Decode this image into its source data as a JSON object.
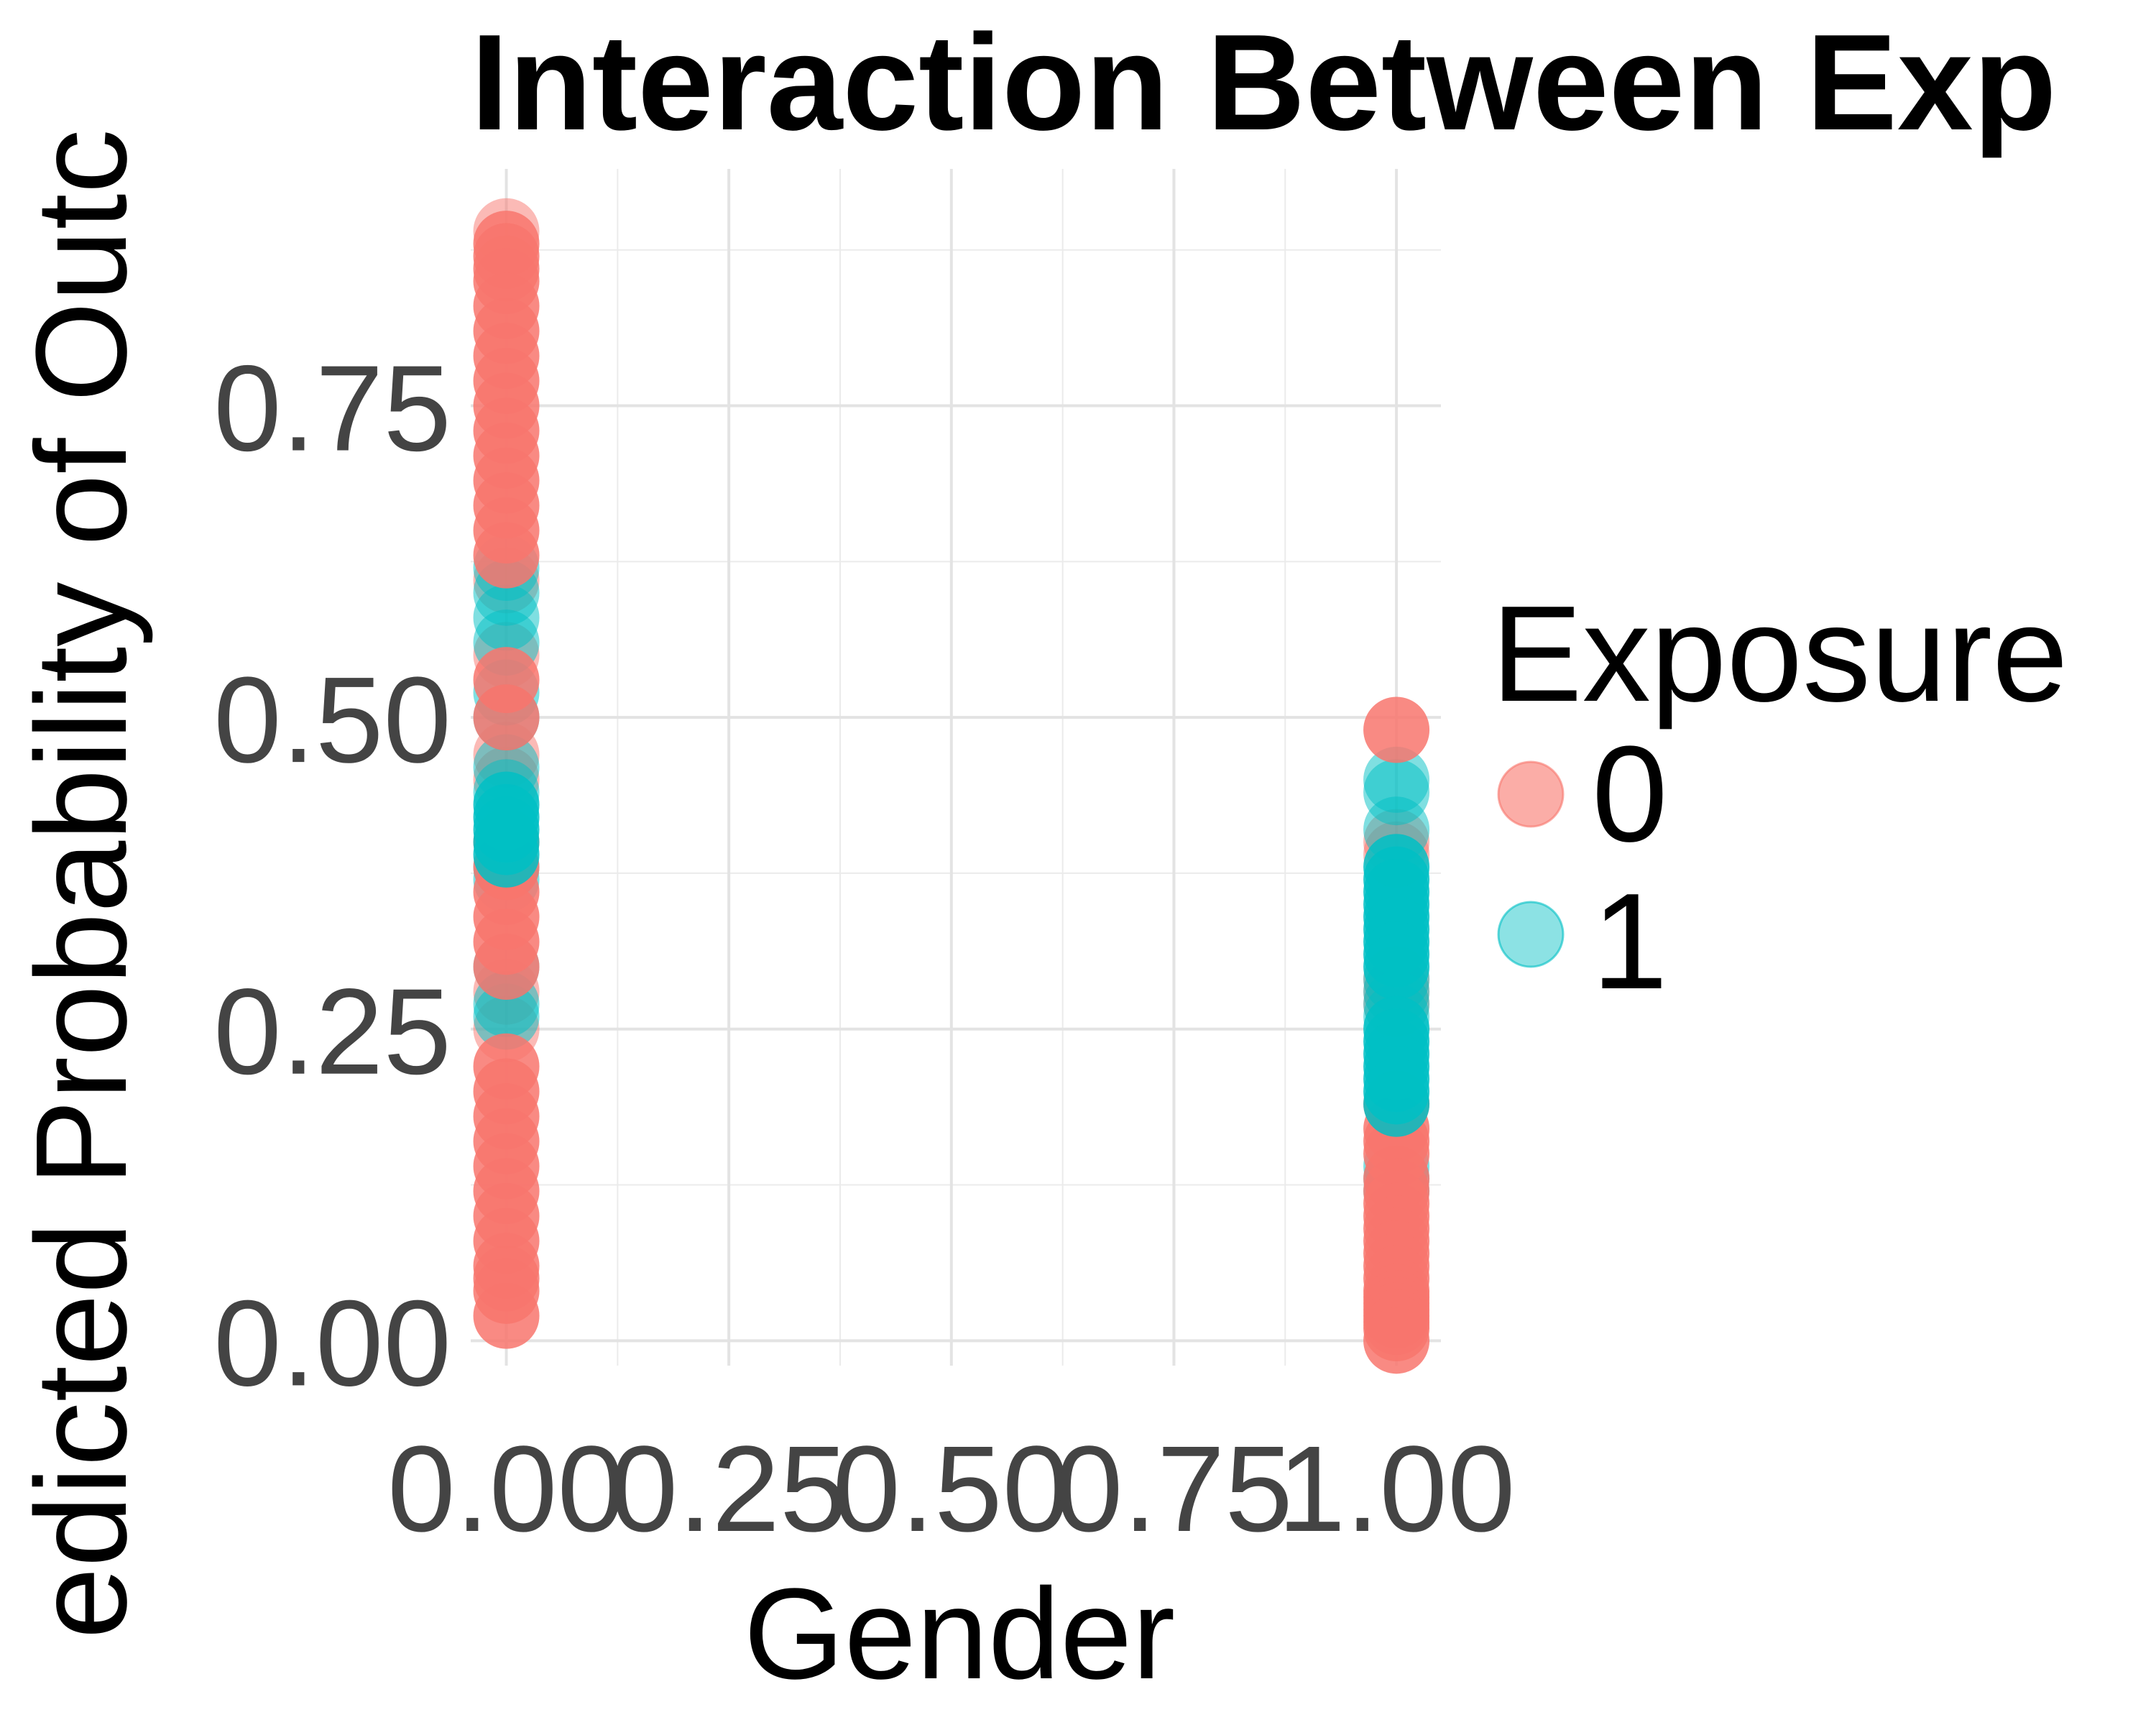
{
  "chart_data": {
    "type": "scatter",
    "title": "Interaction Between Exp",
    "xlabel": "Gender",
    "ylabel": "edicted Probability of Outc",
    "xlim": [
      -0.04,
      1.05
    ],
    "ylim": [
      -0.02,
      0.94
    ],
    "x_ticks": [
      "0.00",
      "0.25",
      "0.50",
      "0.75",
      "1.00"
    ],
    "x_tick_values": [
      0,
      0.25,
      0.5,
      0.75,
      1
    ],
    "y_ticks": [
      "0.00",
      "0.25",
      "0.50",
      "0.75"
    ],
    "y_tick_values": [
      0,
      0.25,
      0.5,
      0.75
    ],
    "grid": true,
    "legend": {
      "title": "Exposure",
      "position": "right",
      "entries": [
        "0",
        "1"
      ]
    },
    "colors": {
      "exposure_0": "#F8766D",
      "exposure_1": "#00BFC4"
    },
    "series": [
      {
        "name": "0",
        "x": [
          0,
          0,
          0,
          0,
          0,
          0,
          0,
          0,
          0,
          0,
          0,
          0,
          0,
          0,
          0,
          0,
          0,
          0,
          0,
          0,
          0,
          0,
          0,
          0,
          0,
          0,
          0,
          0,
          0,
          0,
          0,
          0,
          0,
          0,
          0,
          0,
          0,
          0,
          0,
          0,
          0,
          0,
          1,
          1,
          1,
          1,
          1,
          1,
          1,
          1,
          1,
          1,
          1,
          1,
          1,
          1,
          1,
          1,
          1,
          1,
          1,
          1,
          1,
          1,
          1,
          1,
          1,
          1,
          1
        ],
        "y": [
          0.89,
          0.88,
          0.87,
          0.86,
          0.85,
          0.83,
          0.81,
          0.79,
          0.77,
          0.75,
          0.73,
          0.71,
          0.69,
          0.67,
          0.65,
          0.63,
          0.61,
          0.55,
          0.53,
          0.5,
          0.47,
          0.45,
          0.4,
          0.38,
          0.36,
          0.34,
          0.32,
          0.3,
          0.28,
          0.25,
          0.22,
          0.2,
          0.18,
          0.16,
          0.14,
          0.12,
          0.1,
          0.08,
          0.06,
          0.05,
          0.04,
          0.02,
          0.49,
          0.4,
          0.39,
          0.29,
          0.28,
          0.27,
          0.19,
          0.17,
          0.16,
          0.15,
          0.13,
          0.12,
          0.11,
          0.1,
          0.09,
          0.08,
          0.07,
          0.06,
          0.05,
          0.04,
          0.035,
          0.03,
          0.025,
          0.02,
          0.015,
          0.01,
          0.0
        ],
        "opacity": [
          0.5,
          0.85,
          0.85,
          0.85,
          0.85,
          0.85,
          0.85,
          0.85,
          0.85,
          0.85,
          0.85,
          0.85,
          0.85,
          0.85,
          0.85,
          0.85,
          0.5,
          0.5,
          0.85,
          0.85,
          0.5,
          0.5,
          0.85,
          0.85,
          0.85,
          0.85,
          0.85,
          0.85,
          0.5,
          0.5,
          0.85,
          0.85,
          0.85,
          0.85,
          0.85,
          0.85,
          0.85,
          0.85,
          0.85,
          0.85,
          0.85,
          0.85,
          0.85,
          0.5,
          0.5,
          0.5,
          0.5,
          0.5,
          0.85,
          0.85,
          0.85,
          0.85,
          0.85,
          0.85,
          0.85,
          0.85,
          0.85,
          0.85,
          0.85,
          0.85,
          0.85,
          0.85,
          0.85,
          0.85,
          0.85,
          0.85,
          0.85,
          0.85,
          0.85
        ]
      },
      {
        "name": "1",
        "x": [
          0,
          0,
          0,
          0,
          0,
          0,
          0,
          0,
          0,
          0,
          0,
          0,
          0,
          0,
          0,
          0,
          0,
          0,
          1,
          1,
          1,
          1,
          1,
          1,
          1,
          1,
          1,
          1,
          1,
          1,
          1,
          1,
          1,
          1,
          1,
          1,
          1,
          1,
          1,
          1,
          1,
          1,
          1,
          1
        ],
        "y": [
          0.62,
          0.6,
          0.58,
          0.56,
          0.52,
          0.5,
          0.46,
          0.44,
          0.43,
          0.42,
          0.41,
          0.4,
          0.39,
          0.38,
          0.37,
          0.3,
          0.27,
          0.26,
          0.45,
          0.44,
          0.41,
          0.38,
          0.37,
          0.36,
          0.35,
          0.34,
          0.33,
          0.32,
          0.31,
          0.3,
          0.29,
          0.28,
          0.27,
          0.26,
          0.25,
          0.24,
          0.23,
          0.22,
          0.21,
          0.2,
          0.19,
          0.14,
          0.13,
          0.12
        ],
        "opacity": [
          0.5,
          0.5,
          0.5,
          0.5,
          0.5,
          0.5,
          0.5,
          0.5,
          0.85,
          0.85,
          0.85,
          0.85,
          0.85,
          0.5,
          0.5,
          0.5,
          0.5,
          0.5,
          0.5,
          0.5,
          0.5,
          0.85,
          0.85,
          0.85,
          0.85,
          0.85,
          0.85,
          0.85,
          0.85,
          0.85,
          0.5,
          0.5,
          0.5,
          0.5,
          0.85,
          0.85,
          0.85,
          0.85,
          0.85,
          0.85,
          0.85,
          0.5,
          0.5,
          0.5
        ]
      }
    ]
  }
}
